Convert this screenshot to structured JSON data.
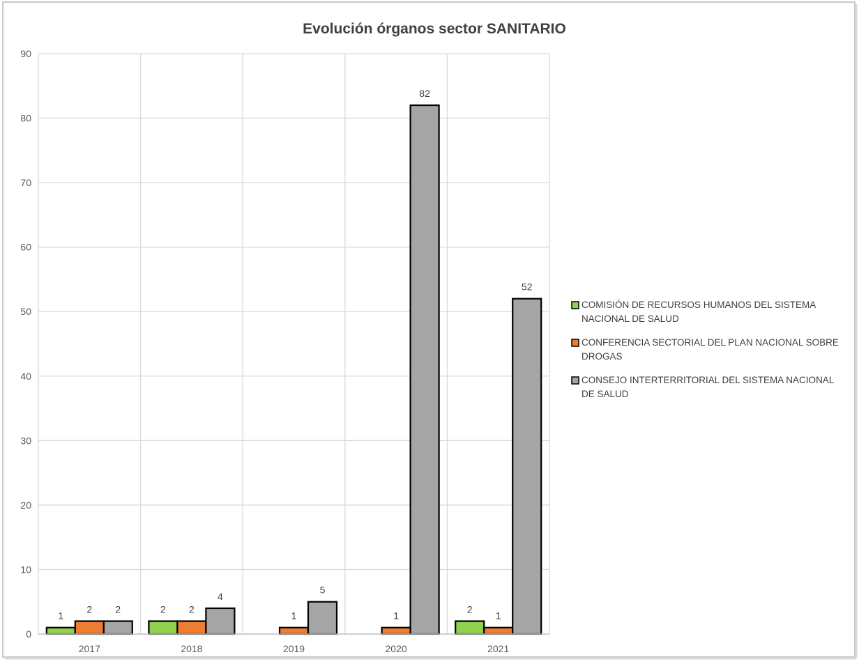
{
  "chart_data": {
    "type": "bar",
    "title": "Evolución órganos sector SANITARIO",
    "xlabel": "",
    "ylabel": "",
    "categories": [
      "2017",
      "2018",
      "2019",
      "2020",
      "2021"
    ],
    "ylim": [
      0,
      90
    ],
    "yticks": [
      0,
      10,
      20,
      30,
      40,
      50,
      60,
      70,
      80,
      90
    ],
    "grid": true,
    "legend_position": "right",
    "series": [
      {
        "name": "COMISIÓN DE RECURSOS HUMANOS DEL SISTEMA NACIONAL DE SALUD",
        "legend_lines": [
          "COMISIÓN DE RECURSOS HUMANOS DEL SISTEMA",
          "NACIONAL DE SALUD"
        ],
        "color": "#92D050",
        "values": [
          1,
          2,
          null,
          null,
          2
        ]
      },
      {
        "name": "CONFERENCIA SECTORIAL DEL PLAN NACIONAL SOBRE DROGAS",
        "legend_lines": [
          "CONFERENCIA SECTORIAL DEL PLAN NACIONAL SOBRE",
          "DROGAS"
        ],
        "color": "#ED7D31",
        "values": [
          2,
          2,
          1,
          1,
          1
        ]
      },
      {
        "name": "CONSEJO INTERTERRITORIAL DEL SISTEMA NACIONAL DE SALUD",
        "legend_lines": [
          "CONSEJO INTERTERRITORIAL DEL SISTEMA NACIONAL",
          "DE SALUD"
        ],
        "color": "#A5A5A5",
        "values": [
          2,
          4,
          5,
          82,
          52
        ]
      }
    ]
  }
}
